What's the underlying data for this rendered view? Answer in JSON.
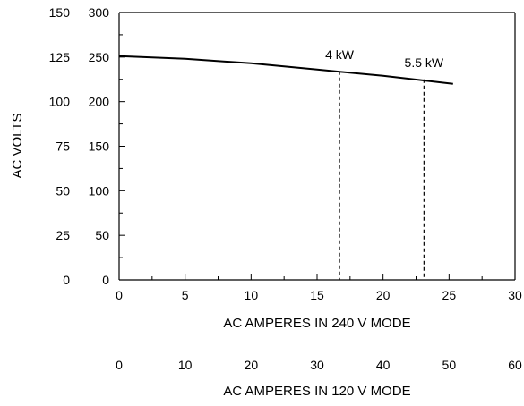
{
  "chart_data": {
    "type": "line",
    "xlabel": "AC AMPERES IN 240 V MODE",
    "xlabel_secondary": "AC AMPERES IN 120 V MODE",
    "ylabel": "AC VOLTS",
    "xlim": [
      0,
      30
    ],
    "ylim": [
      0,
      300
    ],
    "x_ticks": [
      "0",
      "5",
      "10",
      "15",
      "20",
      "25",
      "30"
    ],
    "x_ticks_secondary": [
      "0",
      "10",
      "20",
      "30",
      "40",
      "50",
      "60"
    ],
    "y_ticks_inner": [
      "0",
      "50",
      "100",
      "150",
      "200",
      "250",
      "300"
    ],
    "y_ticks_outer": [
      "0",
      "25",
      "50",
      "75",
      "100",
      "125",
      "150"
    ],
    "grid": false,
    "series": [
      {
        "x": [
          0,
          5,
          10,
          15,
          20,
          25.3
        ],
        "y": [
          251,
          248,
          243,
          236,
          229,
          220
        ]
      }
    ],
    "markers": [
      {
        "label": "4 kW",
        "x": 16.7,
        "y": 234
      },
      {
        "label": "5.5 kW",
        "x": 23.1,
        "y": 225
      }
    ]
  }
}
